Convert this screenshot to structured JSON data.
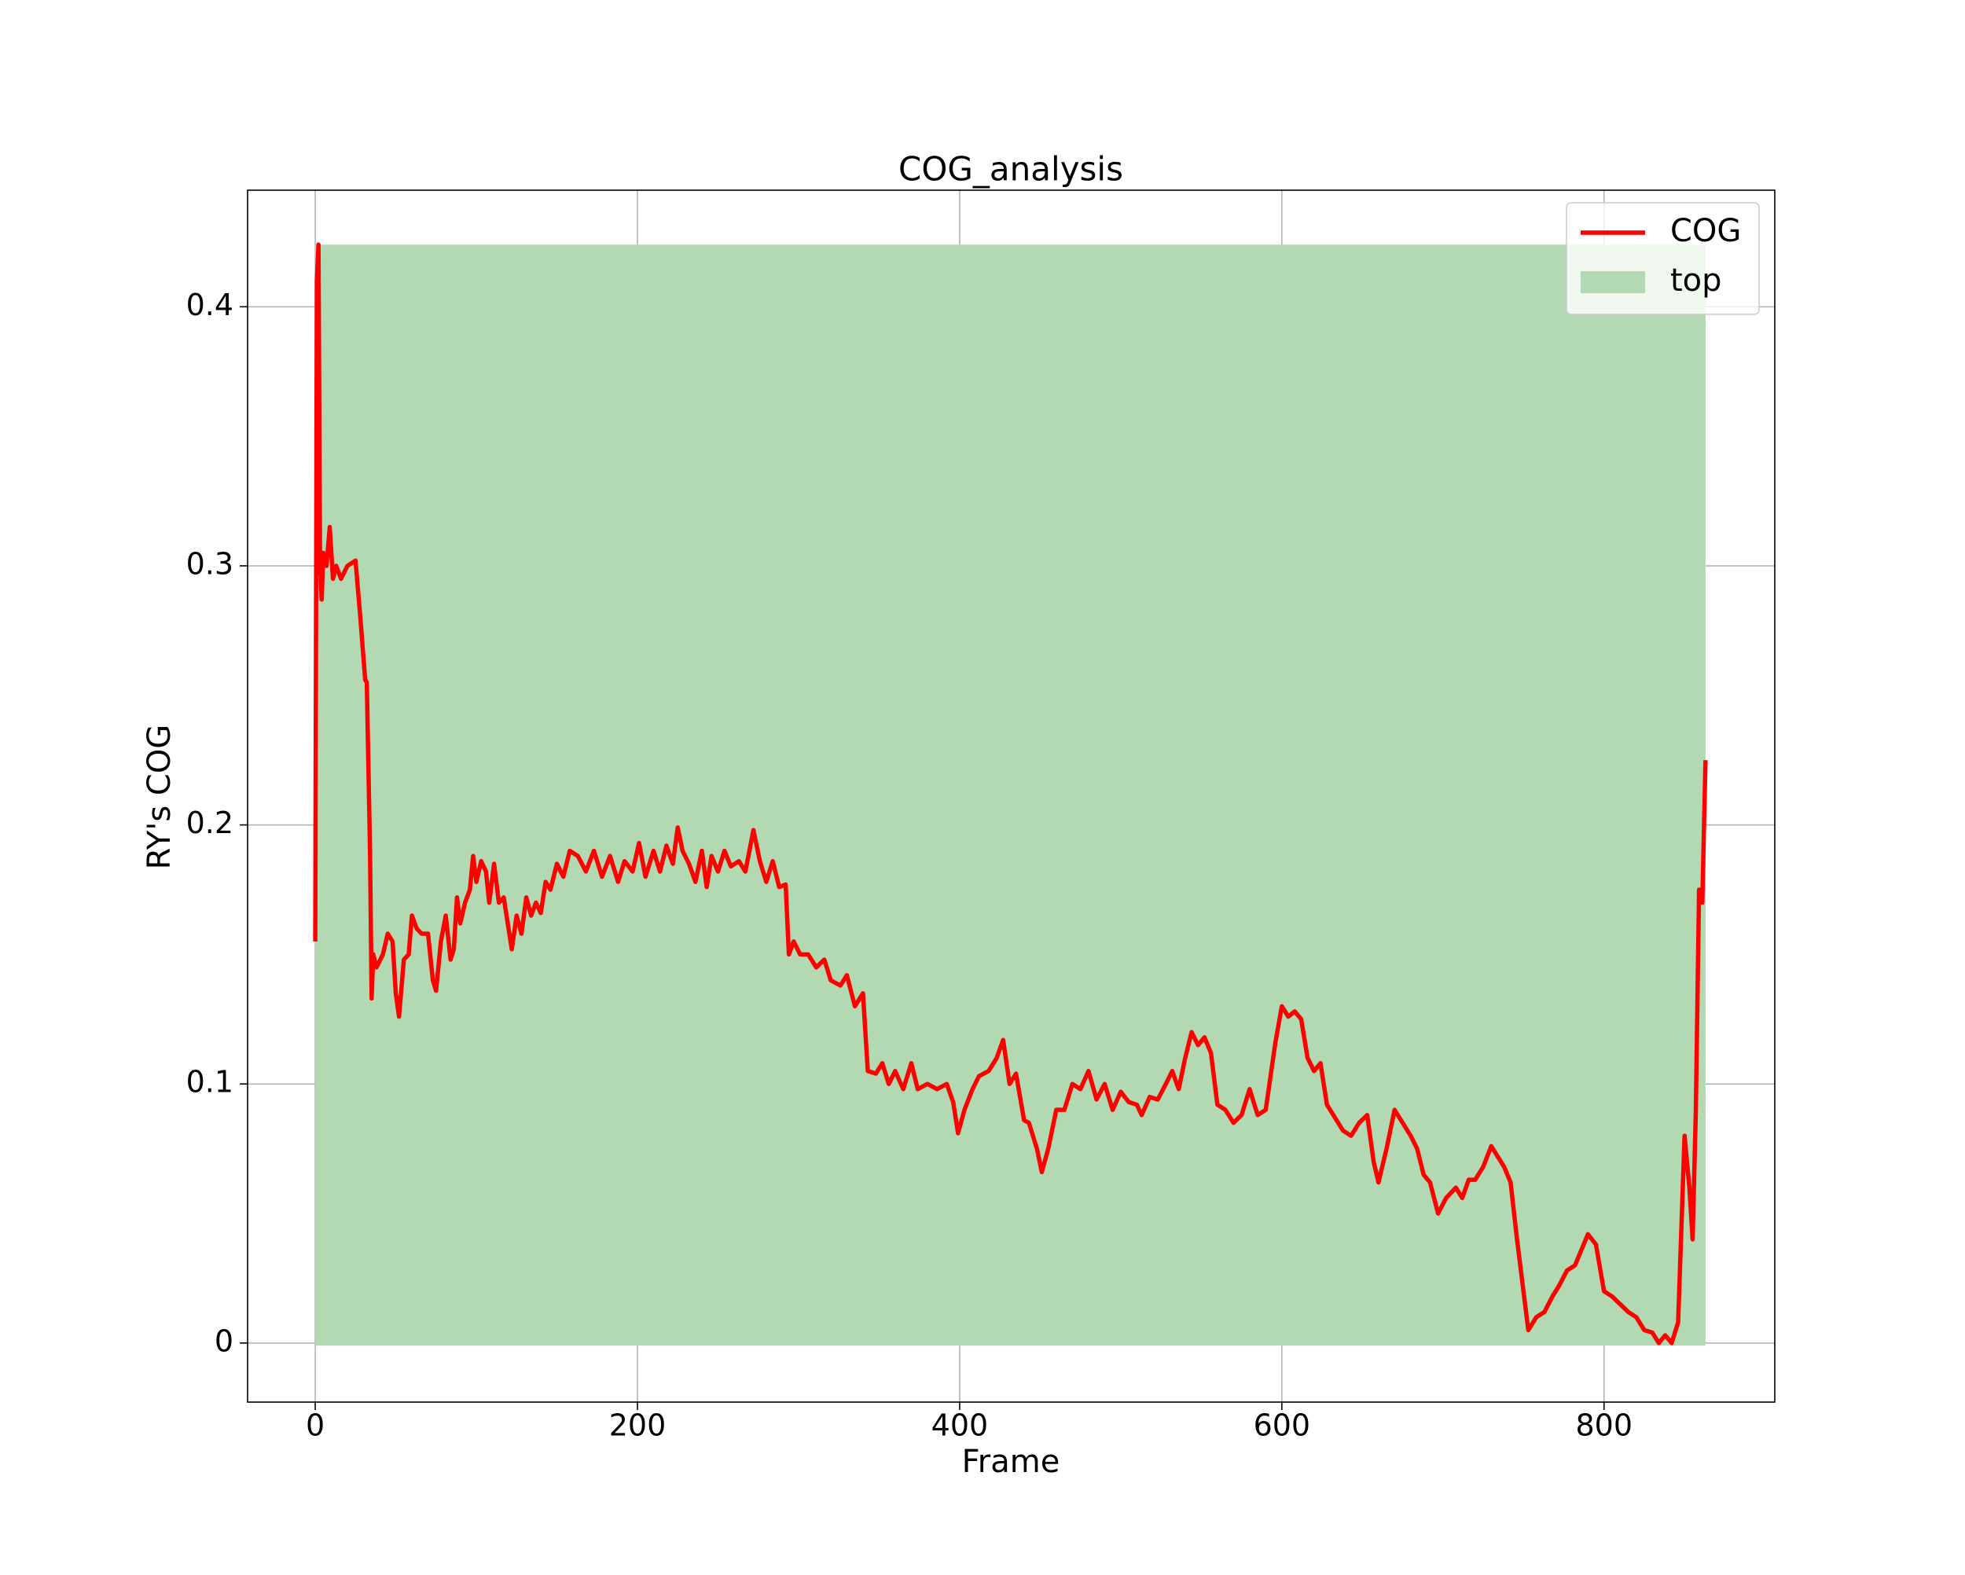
{
  "chart_data": {
    "type": "line",
    "title": "COG_analysis",
    "x_label": "Frame",
    "y_label": "RY's COG",
    "xlim": [
      -42,
      906
    ],
    "ylim": [
      -0.0228,
      0.445
    ],
    "xticks": [
      0,
      200,
      400,
      600,
      800
    ],
    "yticks": [
      0.0,
      0.1,
      0.2,
      0.3,
      0.4
    ],
    "grid": true,
    "legend": "upper right",
    "series": [
      {
        "name": "COG",
        "type": "line",
        "color": "#ff0000",
        "x": [
          0,
          1,
          2,
          3,
          4,
          5,
          7,
          9,
          11,
          13,
          16,
          20,
          25,
          28,
          31,
          32,
          34,
          35,
          36,
          38,
          42,
          45,
          48,
          50,
          52,
          55,
          58,
          60,
          63,
          66,
          70,
          73,
          75,
          78,
          81,
          84,
          86,
          88,
          90,
          93,
          96,
          98,
          100,
          103,
          106,
          108,
          111,
          114,
          117,
          120,
          122,
          125,
          128,
          131,
          134,
          137,
          140,
          143,
          146,
          150,
          154,
          158,
          163,
          168,
          173,
          178,
          183,
          188,
          192,
          197,
          201,
          205,
          210,
          214,
          218,
          222,
          225,
          228,
          232,
          236,
          240,
          243,
          246,
          250,
          254,
          258,
          263,
          267,
          272,
          276,
          280,
          284,
          288,
          292,
          294,
          297,
          301,
          306,
          311,
          316,
          320,
          326,
          330,
          335,
          340,
          343,
          348,
          352,
          356,
          360,
          365,
          370,
          374,
          380,
          386,
          392,
          396,
          399,
          403,
          408,
          412,
          418,
          423,
          427,
          431,
          435,
          440,
          443,
          448,
          451,
          455,
          460,
          465,
          470,
          475,
          480,
          485,
          490,
          495,
          500,
          505,
          510,
          513,
          518,
          523,
          528,
          532,
          536,
          540,
          544,
          548,
          552,
          556,
          560,
          565,
          570,
          575,
          580,
          585,
          590,
          596,
          600,
          604,
          608,
          612,
          616,
          620,
          624,
          628,
          632,
          638,
          643,
          648,
          653,
          657,
          660,
          665,
          670,
          675,
          680,
          684,
          688,
          692,
          697,
          702,
          708,
          712,
          716,
          720,
          725,
          730,
          734,
          738,
          742,
          746,
          750,
          753,
          758,
          763,
          768,
          772,
          777,
          782,
          786,
          790,
          795,
          800,
          805,
          810,
          815,
          820,
          825,
          830,
          834,
          838,
          842,
          846,
          850,
          853,
          855,
          857,
          859,
          861,
          863
        ],
        "values": [
          0.155,
          0.41,
          0.424,
          0.3,
          0.287,
          0.305,
          0.3,
          0.315,
          0.295,
          0.3,
          0.295,
          0.3,
          0.302,
          0.28,
          0.256,
          0.255,
          0.19,
          0.133,
          0.15,
          0.145,
          0.15,
          0.158,
          0.155,
          0.135,
          0.126,
          0.148,
          0.15,
          0.165,
          0.16,
          0.158,
          0.158,
          0.14,
          0.136,
          0.155,
          0.165,
          0.148,
          0.152,
          0.172,
          0.162,
          0.17,
          0.175,
          0.188,
          0.178,
          0.186,
          0.182,
          0.17,
          0.185,
          0.17,
          0.172,
          0.16,
          0.152,
          0.165,
          0.158,
          0.172,
          0.165,
          0.17,
          0.166,
          0.178,
          0.175,
          0.185,
          0.18,
          0.19,
          0.188,
          0.182,
          0.19,
          0.18,
          0.188,
          0.178,
          0.186,
          0.182,
          0.193,
          0.18,
          0.19,
          0.182,
          0.192,
          0.185,
          0.199,
          0.19,
          0.185,
          0.178,
          0.19,
          0.176,
          0.188,
          0.182,
          0.19,
          0.184,
          0.186,
          0.182,
          0.198,
          0.186,
          0.178,
          0.186,
          0.176,
          0.177,
          0.15,
          0.155,
          0.15,
          0.15,
          0.145,
          0.148,
          0.14,
          0.138,
          0.142,
          0.13,
          0.135,
          0.105,
          0.104,
          0.108,
          0.1,
          0.105,
          0.098,
          0.108,
          0.098,
          0.1,
          0.098,
          0.1,
          0.093,
          0.081,
          0.09,
          0.098,
          0.103,
          0.105,
          0.11,
          0.117,
          0.1,
          0.104,
          0.086,
          0.085,
          0.075,
          0.066,
          0.075,
          0.09,
          0.09,
          0.1,
          0.098,
          0.105,
          0.094,
          0.1,
          0.09,
          0.097,
          0.093,
          0.092,
          0.088,
          0.095,
          0.094,
          0.1,
          0.105,
          0.098,
          0.11,
          0.12,
          0.115,
          0.118,
          0.112,
          0.092,
          0.09,
          0.085,
          0.088,
          0.098,
          0.088,
          0.09,
          0.116,
          0.13,
          0.126,
          0.128,
          0.125,
          0.11,
          0.105,
          0.108,
          0.092,
          0.088,
          0.082,
          0.08,
          0.085,
          0.088,
          0.07,
          0.062,
          0.075,
          0.09,
          0.085,
          0.08,
          0.075,
          0.065,
          0.062,
          0.05,
          0.056,
          0.06,
          0.056,
          0.063,
          0.063,
          0.068,
          0.076,
          0.072,
          0.068,
          0.062,
          0.04,
          0.02,
          0.005,
          0.01,
          0.012,
          0.018,
          0.022,
          0.028,
          0.03,
          0.036,
          0.042,
          0.038,
          0.02,
          0.018,
          0.015,
          0.012,
          0.01,
          0.005,
          0.004,
          0.0,
          0.003,
          0.0,
          0.008,
          0.08,
          0.06,
          0.04,
          0.09,
          0.175,
          0.17,
          0.225
        ]
      },
      {
        "name": "top",
        "type": "area",
        "color": "#b3d9b3",
        "x": [
          0,
          863
        ],
        "values": [
          0.424,
          0.424
        ],
        "base": [
          -0.001,
          -0.001
        ]
      }
    ]
  }
}
